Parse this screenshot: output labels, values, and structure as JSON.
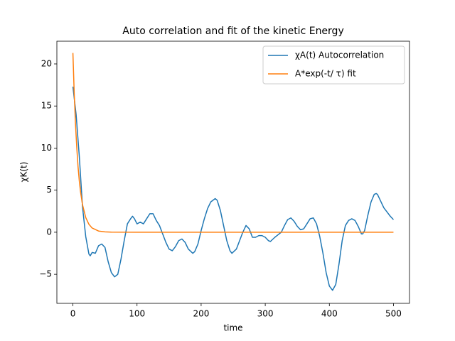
{
  "chart_data": {
    "type": "line",
    "title": "Auto correlation and fit of the kinetic Energy",
    "xlabel": "time",
    "ylabel": "χK(t)",
    "xlim": [
      -25,
      525
    ],
    "ylim": [
      -8.45,
      22.7
    ],
    "xticks": [
      0,
      100,
      200,
      300,
      400,
      500
    ],
    "yticks": [
      {
        "value": -5,
        "label": "−5"
      },
      0,
      5,
      10,
      15,
      20
    ],
    "legend": "upper right",
    "series": [
      {
        "name": "χA(t) Autocorrelation",
        "color": "#1f77b4",
        "x": [
          0,
          5,
          10,
          15,
          20,
          25,
          27,
          30,
          35,
          40,
          45,
          50,
          55,
          60,
          65,
          70,
          75,
          80,
          85,
          90,
          93,
          96,
          100,
          105,
          110,
          115,
          120,
          125,
          130,
          135,
          140,
          145,
          150,
          155,
          160,
          165,
          170,
          175,
          180,
          187,
          190,
          195,
          200,
          205,
          210,
          215,
          222,
          225,
          230,
          235,
          240,
          245,
          248,
          255,
          260,
          265,
          270,
          275,
          280,
          285,
          290,
          295,
          300,
          305,
          308,
          315,
          320,
          325,
          330,
          335,
          340,
          345,
          350,
          355,
          360,
          365,
          370,
          375,
          380,
          385,
          390,
          395,
          400,
          405,
          410,
          415,
          420,
          425,
          430,
          435,
          440,
          445,
          450,
          452,
          455,
          460,
          465,
          470,
          473,
          475,
          480,
          485,
          490,
          495,
          500
        ],
        "values": [
          17.3,
          14,
          9,
          3,
          -0.5,
          -2.6,
          -2.8,
          -2.4,
          -2.5,
          -1.6,
          -1.4,
          -1.8,
          -3.5,
          -4.8,
          -5.3,
          -5.0,
          -3.2,
          -1,
          1,
          1.6,
          1.9,
          1.6,
          1.0,
          1.2,
          1.0,
          1.6,
          2.2,
          2.2,
          1.4,
          0.8,
          -0.2,
          -1.2,
          -2.0,
          -2.2,
          -1.7,
          -1.0,
          -0.8,
          -1.2,
          -2.0,
          -2.5,
          -2.3,
          -1.4,
          0.2,
          1.6,
          2.8,
          3.6,
          4.0,
          3.8,
          2.6,
          0.8,
          -1.0,
          -2.2,
          -2.5,
          -2.0,
          -1.0,
          0,
          0.8,
          0.4,
          -0.6,
          -0.6,
          -0.4,
          -0.4,
          -0.6,
          -1.0,
          -1.1,
          -0.6,
          -0.3,
          0,
          0.8,
          1.5,
          1.7,
          1.3,
          0.7,
          0.3,
          0.4,
          1.0,
          1.6,
          1.7,
          1.0,
          -0.5,
          -2.5,
          -4.8,
          -6.4,
          -6.9,
          -6.2,
          -3.8,
          -1.0,
          0.8,
          1.4,
          1.6,
          1.4,
          0.7,
          -0.2,
          -0.2,
          0.2,
          2.0,
          3.6,
          4.5,
          4.6,
          4.5,
          3.7,
          2.9,
          2.4,
          1.9,
          1.5
        ]
      },
      {
        "name": "A*exp(-t/ τ) fit",
        "color": "#ff7f0e",
        "x": [
          0,
          2,
          4,
          6,
          8,
          10,
          12,
          15,
          20,
          25,
          30,
          40,
          50,
          60,
          100,
          200,
          300,
          400,
          500
        ],
        "values": [
          21.3,
          16.6,
          12.9,
          10.1,
          7.8,
          6.1,
          4.75,
          3.27,
          1.75,
          0.94,
          0.5,
          0.14,
          0.04,
          0.01,
          0,
          0,
          0,
          0,
          0
        ]
      }
    ]
  }
}
